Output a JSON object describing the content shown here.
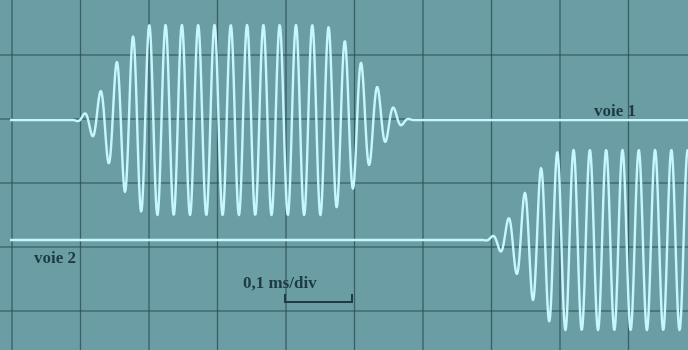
{
  "labels": {
    "channel_1": "voie 1",
    "channel_2": "voie 2",
    "timebase": "0,1 ms/div"
  }
}
